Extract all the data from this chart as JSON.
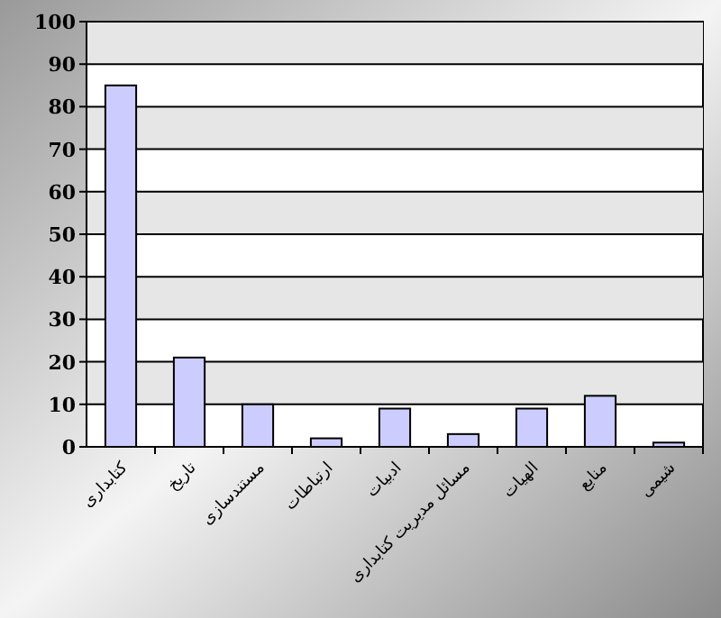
{
  "chart_data": {
    "type": "bar",
    "categories": [
      "کتابداری",
      "تاریخ",
      "مستندسازی",
      "ارتباطات",
      "ادبیات",
      "مسائل مدیریت کتابداری",
      "الهیات",
      "منابع",
      "شیمی"
    ],
    "values": [
      85,
      21,
      10,
      2,
      9,
      3,
      9,
      12,
      1
    ],
    "color": "#ccccff",
    "ylim": [
      0,
      100
    ],
    "yticks": [
      0,
      10,
      20,
      30,
      40,
      50,
      60,
      70,
      80,
      90,
      100
    ],
    "grid": true
  }
}
